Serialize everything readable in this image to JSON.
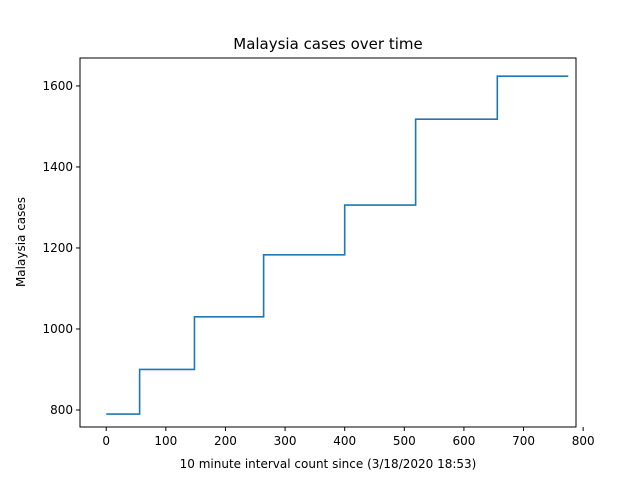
{
  "chart_data": {
    "type": "line",
    "title": "Malaysia cases over time",
    "xlabel": "10 minute interval count since (3/18/2020 18:53)",
    "ylabel": "Malaysia cases",
    "xlim": [
      -44,
      788
    ],
    "ylim": [
      758,
      1669
    ],
    "xticks": [
      0,
      100,
      200,
      300,
      400,
      500,
      600,
      700,
      800
    ],
    "yticks": [
      800,
      1000,
      1200,
      1400,
      1600
    ],
    "grid": false,
    "color": "#1f77b4",
    "series": [
      {
        "name": "Malaysia cases",
        "x": [
          0,
          56,
          56,
          148,
          148,
          264,
          264,
          400,
          400,
          519,
          519,
          656,
          656,
          775
        ],
        "y": [
          790,
          790,
          900,
          900,
          1030,
          1030,
          1183,
          1183,
          1306,
          1306,
          1518,
          1518,
          1624,
          1624
        ]
      }
    ]
  }
}
